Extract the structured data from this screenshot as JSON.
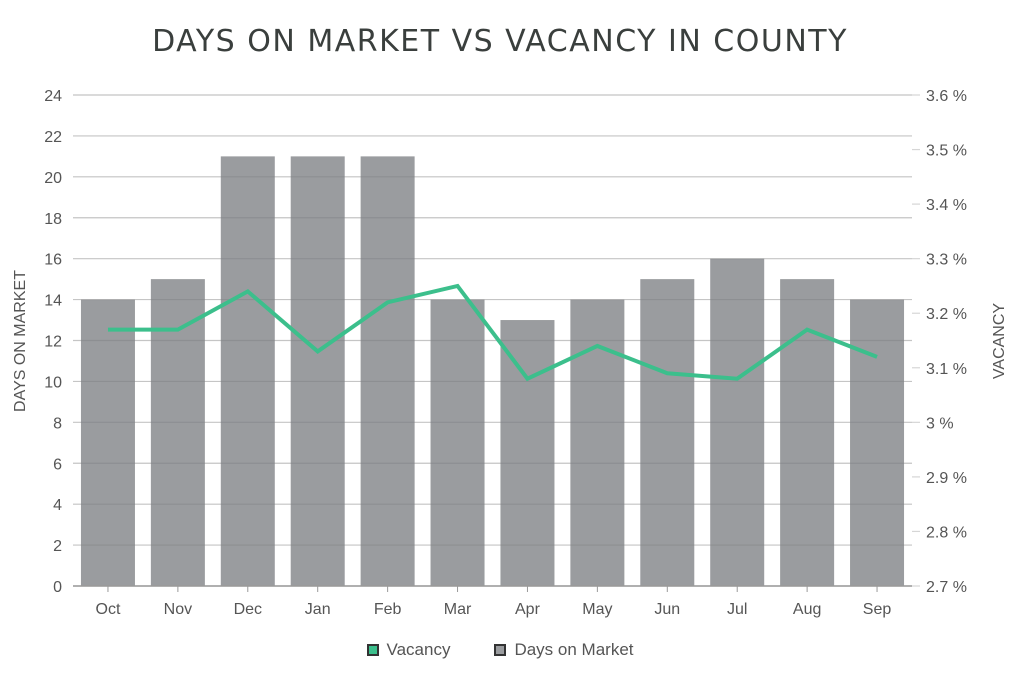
{
  "chart_data": {
    "type": "bar+line",
    "title": "DAYS ON MARKET VS VACANCY IN COUNTY",
    "categories": [
      "Oct",
      "Nov",
      "Dec",
      "Jan",
      "Feb",
      "Mar",
      "Apr",
      "May",
      "Jun",
      "Jul",
      "Aug",
      "Sep"
    ],
    "series": [
      {
        "name": "Days on Market",
        "type": "bar",
        "axis": "left",
        "color": "#9a9c9f",
        "values": [
          14,
          15,
          21,
          21,
          21,
          14,
          13,
          14,
          15,
          16,
          15,
          14
        ]
      },
      {
        "name": "Vacancy",
        "type": "line",
        "axis": "right",
        "color": "#3cbf8c",
        "unit": "%",
        "values": [
          3.17,
          3.17,
          3.24,
          3.13,
          3.22,
          3.25,
          3.08,
          3.14,
          3.09,
          3.08,
          3.17,
          3.12
        ]
      }
    ],
    "ylabel": "DAYS ON MARKET",
    "ylabel_right": "VACANCY",
    "ylim": [
      0,
      24
    ],
    "yticks": [
      0,
      2,
      4,
      6,
      8,
      10,
      12,
      14,
      16,
      18,
      20,
      22,
      24
    ],
    "ylim_right": [
      2.7,
      3.6
    ],
    "yticks_right": [
      "2.7 %",
      "2.8 %",
      "2.9 %",
      "3 %",
      "3.1 %",
      "3.2 %",
      "3.3 %",
      "3.4 %",
      "3.5 %",
      "3.6 %"
    ],
    "grid": true,
    "legend_position": "bottom"
  },
  "legend": {
    "vacancy": "Vacancy",
    "days": "Days on Market"
  },
  "colors": {
    "bar": "#9a9c9f",
    "line": "#3cbf8c",
    "grid": "#d6d6d6",
    "text": "#555555"
  }
}
